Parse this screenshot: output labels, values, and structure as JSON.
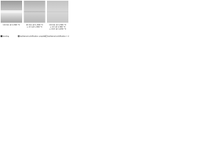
{
  "panels": [
    {
      "caption": [
        "10 min at 1,300 °C"
      ]
    },
    {
      "caption": [
        "10 min at 1,300 °C",
        "+ 4 h at 1,300 °C"
      ]
    },
    {
      "caption": [
        "10 min at 1,300 °C",
        "+ 4 h at 1,300 °C",
        "+ 24 h at 1,250 °C"
      ]
    }
  ],
  "legend": [
    {
      "label": "bonding"
    },
    {
      "label": "isothermal solidification completed"
    },
    {
      "label": "isothermal solidification + diffusion"
    }
  ]
}
